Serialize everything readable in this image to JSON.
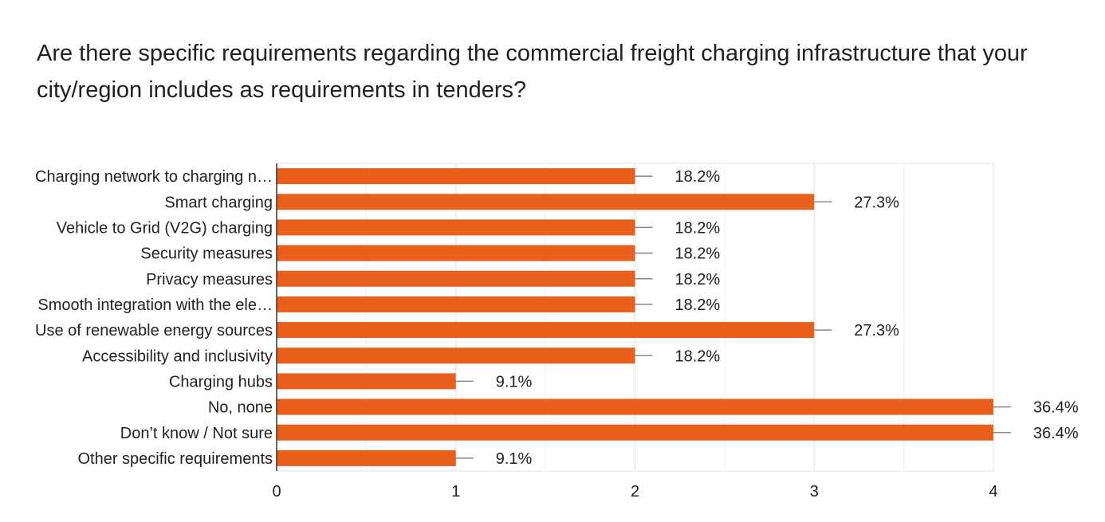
{
  "chart_data": {
    "type": "bar",
    "orientation": "horizontal",
    "title": "Are there specific requirements regarding the commercial freight charging infrastructure that your city/region includes as requirements in tenders?",
    "categories": [
      "Charging network to charging n…",
      "Smart charging",
      "Vehicle to Grid (V2G) charging",
      "Security measures",
      "Privacy measures",
      "Smooth integration with the ele…",
      "Use of renewable energy sources",
      "Accessibility and inclusivity",
      "Charging hubs",
      "No, none",
      "Don’t know / Not sure",
      "Other specific requirements"
    ],
    "values": [
      2,
      3,
      2,
      2,
      2,
      2,
      3,
      2,
      1,
      4,
      4,
      1
    ],
    "data_labels": [
      "18.2%",
      "27.3%",
      "18.2%",
      "18.2%",
      "18.2%",
      "18.2%",
      "27.3%",
      "18.2%",
      "9.1%",
      "36.4%",
      "36.4%",
      "9.1%"
    ],
    "x_ticks": [
      "0",
      "1",
      "2",
      "3",
      "4"
    ],
    "xlim": [
      0,
      4
    ],
    "grid": true,
    "bar_color": "#e8601c"
  }
}
